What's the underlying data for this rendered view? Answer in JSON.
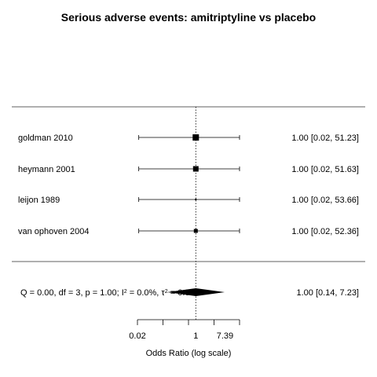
{
  "chart_data": {
    "type": "forest",
    "title": "Serious adverse events: amitriptyline vs placebo",
    "xlabel": "Odds Ratio (log scale)",
    "x_scale": "log",
    "xlim": [
      0.0183,
      20.0855
    ],
    "ticks": [
      0.02,
      1,
      7.39
    ],
    "reference_line": 1,
    "studies": [
      {
        "label": "goldman 2010",
        "or": 1.0,
        "lower": 0.02,
        "upper": 51.23,
        "text": "1.00 [0.02, 51.23]"
      },
      {
        "label": "heymann 2001",
        "or": 1.0,
        "lower": 0.02,
        "upper": 51.63,
        "text": "1.00 [0.02, 51.63]"
      },
      {
        "label": "leijon 1989",
        "or": 1.0,
        "lower": 0.02,
        "upper": 53.66,
        "text": "1.00 [0.02, 53.66]"
      },
      {
        "label": "van ophoven 2004",
        "or": 1.0,
        "lower": 0.02,
        "upper": 52.36,
        "text": "1.00 [0.02, 52.36]"
      }
    ],
    "summary": {
      "label_prefix": "Q = 0.00, df = 3, p = 1.00; I",
      "label_sup": "2",
      "label_middle": " = 0.0%, τ",
      "label_sup2": "2",
      "label_suffix": " = 0.00",
      "or": 1.0,
      "lower": 0.14,
      "upper": 7.23,
      "text": "1.00 [0.14,  7.23]"
    }
  }
}
